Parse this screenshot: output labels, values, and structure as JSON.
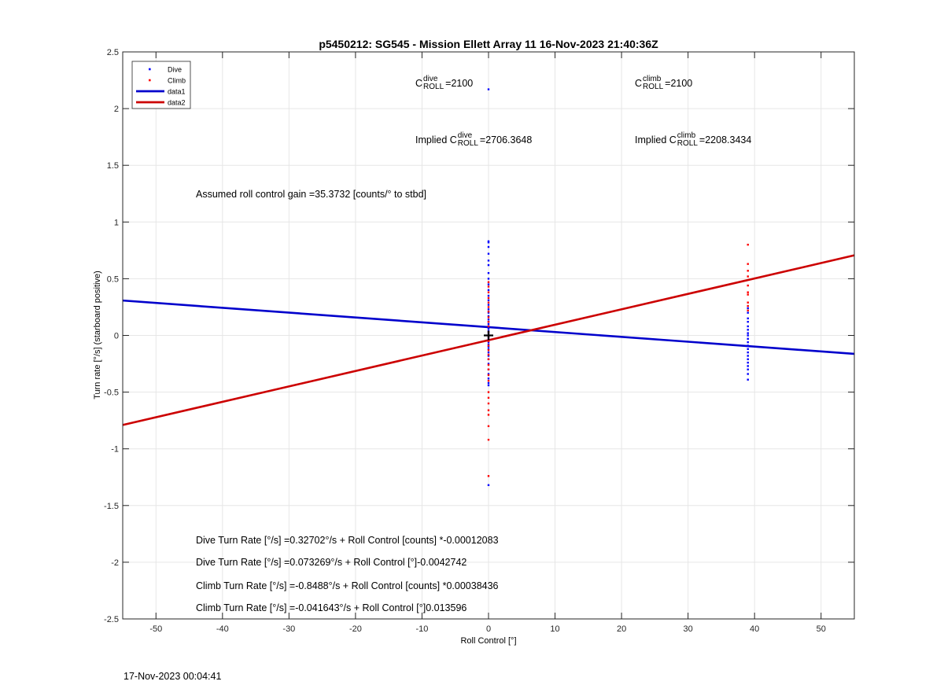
{
  "chart_data": {
    "type": "scatter",
    "title": "p5450212: SG545 - Mission Ellett Array 11 16-Nov-2023 21:40:36Z",
    "xlabel": "Roll Control [°]",
    "ylabel": "Turn rate [°/s] (starboard positive)",
    "xlim": [
      -55,
      55
    ],
    "ylim": [
      -2.5,
      2.5
    ],
    "xticks": [
      -50,
      -40,
      -30,
      -20,
      -10,
      0,
      10,
      20,
      30,
      40,
      50
    ],
    "yticks": [
      -2.5,
      -2,
      -1.5,
      -1,
      -0.5,
      0,
      0.5,
      1,
      1.5,
      2,
      2.5
    ],
    "grid": true,
    "legend_position": "top-left",
    "legend": [
      {
        "name": "Dive",
        "kind": "marker",
        "color": "#0000ff"
      },
      {
        "name": "Climb",
        "kind": "marker",
        "color": "#ff0000"
      },
      {
        "name": "data1",
        "kind": "line",
        "color": "#0000cc"
      },
      {
        "name": "data2",
        "kind": "line",
        "color": "#cc0000"
      }
    ],
    "series": [
      {
        "name": "Dive",
        "color": "#0000ff",
        "points": [
          [
            0,
            2.17
          ],
          [
            0,
            0.83
          ],
          [
            0,
            0.82
          ],
          [
            0,
            0.78
          ],
          [
            0,
            0.72
          ],
          [
            0,
            0.66
          ],
          [
            0,
            0.62
          ],
          [
            0,
            0.55
          ],
          [
            0,
            0.5
          ],
          [
            0,
            0.45
          ],
          [
            0,
            0.4
          ],
          [
            0,
            0.35
          ],
          [
            0,
            0.31
          ],
          [
            0,
            0.27
          ],
          [
            0,
            0.23
          ],
          [
            0,
            0.2
          ],
          [
            0,
            0.17
          ],
          [
            0,
            0.14
          ],
          [
            0,
            0.12
          ],
          [
            0,
            0.1
          ],
          [
            0,
            0.08
          ],
          [
            0,
            0.06
          ],
          [
            0,
            0.04
          ],
          [
            0,
            0.02
          ],
          [
            0,
            0.0
          ],
          [
            0,
            -0.02
          ],
          [
            0,
            -0.04
          ],
          [
            0,
            -0.06
          ],
          [
            0,
            -0.08
          ],
          [
            0,
            -0.1
          ],
          [
            0,
            -0.12
          ],
          [
            0,
            -0.15
          ],
          [
            0,
            -0.18
          ],
          [
            0,
            -0.21
          ],
          [
            0,
            -0.25
          ],
          [
            0,
            -0.3
          ],
          [
            0,
            -0.34
          ],
          [
            0,
            -0.38
          ],
          [
            0,
            -0.42
          ],
          [
            0,
            -0.44
          ],
          [
            0,
            -1.32
          ],
          [
            39,
            0.24
          ],
          [
            39,
            0.2
          ],
          [
            39,
            0.15
          ],
          [
            39,
            0.12
          ],
          [
            39,
            0.08
          ],
          [
            39,
            0.05
          ],
          [
            39,
            0.02
          ],
          [
            39,
            0.0
          ],
          [
            39,
            -0.03
          ],
          [
            39,
            -0.06
          ],
          [
            39,
            -0.09
          ],
          [
            39,
            -0.12
          ],
          [
            39,
            -0.15
          ],
          [
            39,
            -0.18
          ],
          [
            39,
            -0.21
          ],
          [
            39,
            -0.24
          ],
          [
            39,
            -0.27
          ],
          [
            39,
            -0.3
          ],
          [
            39,
            -0.34
          ],
          [
            39,
            -0.39
          ]
        ]
      },
      {
        "name": "Climb",
        "color": "#ff0000",
        "points": [
          [
            0,
            0.47
          ],
          [
            0,
            0.43
          ],
          [
            0,
            0.38
          ],
          [
            0,
            0.33
          ],
          [
            0,
            0.29
          ],
          [
            0,
            0.25
          ],
          [
            0,
            0.21
          ],
          [
            0,
            0.16
          ],
          [
            0,
            0.12
          ],
          [
            0,
            0.08
          ],
          [
            0,
            0.03
          ],
          [
            0,
            -0.01
          ],
          [
            0,
            -0.05
          ],
          [
            0,
            -0.09
          ],
          [
            0,
            -0.13
          ],
          [
            0,
            -0.17
          ],
          [
            0,
            -0.21
          ],
          [
            0,
            -0.26
          ],
          [
            0,
            -0.3
          ],
          [
            0,
            -0.35
          ],
          [
            0,
            -0.4
          ],
          [
            0,
            -0.5
          ],
          [
            0,
            -0.55
          ],
          [
            0,
            -0.6
          ],
          [
            0,
            -0.66
          ],
          [
            0,
            -0.7
          ],
          [
            0,
            -0.8
          ],
          [
            0,
            -0.92
          ],
          [
            0,
            -1.24
          ],
          [
            39,
            0.8
          ],
          [
            39,
            0.63
          ],
          [
            39,
            0.57
          ],
          [
            39,
            0.52
          ],
          [
            39,
            0.44
          ],
          [
            39,
            0.38
          ],
          [
            39,
            0.36
          ],
          [
            39,
            0.29
          ],
          [
            39,
            0.26
          ],
          [
            39,
            0.22
          ]
        ]
      }
    ],
    "fit_lines": [
      {
        "name": "data1",
        "color": "#0000cc",
        "x": [
          -55,
          55
        ],
        "y": [
          0.3078,
          -0.1624
        ]
      },
      {
        "name": "data2",
        "color": "#cc0000",
        "x": [
          -55,
          55
        ],
        "y": [
          -0.7895,
          0.7062
        ]
      }
    ],
    "centroid_marker": {
      "x": 0,
      "y": 0
    },
    "annotations": {
      "c_dive_base": "C",
      "c_dive_sup": "dive",
      "c_dive_sub": "ROLL",
      "c_dive_val": "=2100",
      "c_climb_base": "C",
      "c_climb_sup": "climb",
      "c_climb_sub": "ROLL",
      "c_climb_val": "=2100",
      "implied_dive_prefix": "Implied C",
      "implied_dive_sup": "dive",
      "implied_dive_sub": "ROLL",
      "implied_dive_val": "=2706.3648",
      "implied_climb_prefix": "Implied C",
      "implied_climb_sup": "climb",
      "implied_climb_sub": "ROLL",
      "implied_climb_val": "=2208.3434",
      "gain": "Assumed roll control gain =35.3732 [counts/° to stbd]",
      "eq1": "Dive Turn Rate [°/s] =0.32702°/s + Roll Control [counts] *-0.00012083",
      "eq2": "Dive Turn Rate [°/s] =0.073269°/s + Roll Control [°]-0.0042742",
      "eq3": "Climb Turn Rate [°/s] =-0.8488°/s + Roll Control [counts] *0.00038436",
      "eq4": "Climb Turn Rate [°/s] =-0.041643°/s + Roll Control [°]0.013596"
    },
    "footer_timestamp": "17-Nov-2023 00:04:41"
  }
}
